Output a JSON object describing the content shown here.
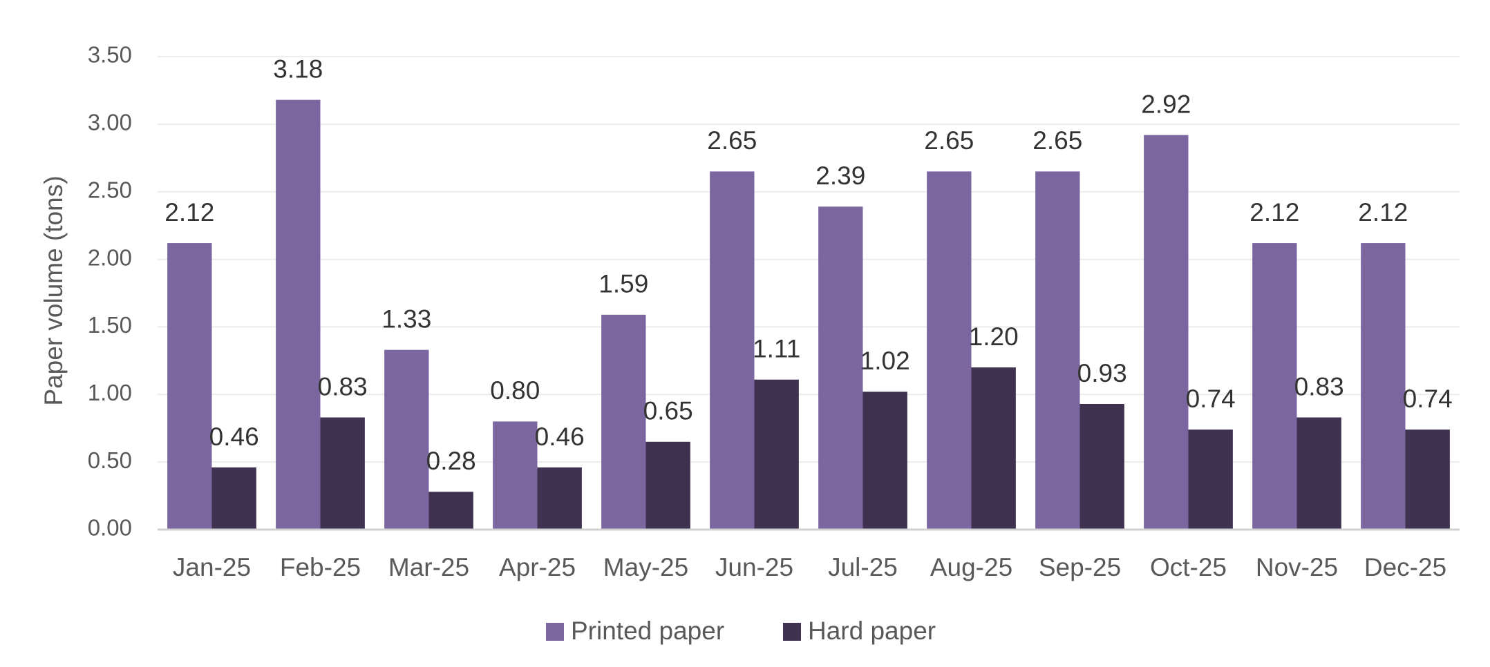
{
  "chart_data": {
    "type": "bar",
    "y_label": "Paper volume (tons)",
    "categories": [
      "Jan-25",
      "Feb-25",
      "Mar-25",
      "Apr-25",
      "May-25",
      "Jun-25",
      "Jul-25",
      "Aug-25",
      "Sep-25",
      "Oct-25",
      "Nov-25",
      "Dec-25"
    ],
    "series": [
      {
        "name": "Printed paper",
        "color": "#7b66a0",
        "values": [
          2.12,
          3.18,
          1.33,
          0.8,
          1.59,
          2.65,
          2.39,
          2.65,
          2.65,
          2.92,
          2.12,
          2.12
        ],
        "value_labels": [
          "2.12",
          "3.18",
          "1.33",
          "0.80",
          "1.59",
          "2.65",
          "2.39",
          "2.65",
          "2.65",
          "2.92",
          "2.12",
          "2.12"
        ]
      },
      {
        "name": "Hard paper",
        "color": "#3f3250",
        "values": [
          0.46,
          0.83,
          0.28,
          0.46,
          0.65,
          1.11,
          1.02,
          1.2,
          0.93,
          0.74,
          0.83,
          0.74
        ],
        "value_labels": [
          "0.46",
          "0.83",
          "0.28",
          "0.46",
          "0.65",
          "1.11",
          "1.02",
          "1.20",
          "0.93",
          "0.74",
          "0.83",
          "0.74"
        ]
      }
    ],
    "ylim": [
      0,
      3.5
    ],
    "yticks": [
      {
        "value": 0,
        "label": "0.00"
      },
      {
        "value": 0.5,
        "label": "0.50"
      },
      {
        "value": 1,
        "label": "1.00"
      },
      {
        "value": 1.5,
        "label": "1.50"
      },
      {
        "value": 2,
        "label": "2.00"
      },
      {
        "value": 2.5,
        "label": "2.50"
      },
      {
        "value": 3,
        "label": "3.00"
      },
      {
        "value": 3.5,
        "label": "3.50"
      }
    ],
    "grid": true,
    "legend": "bottom"
  }
}
